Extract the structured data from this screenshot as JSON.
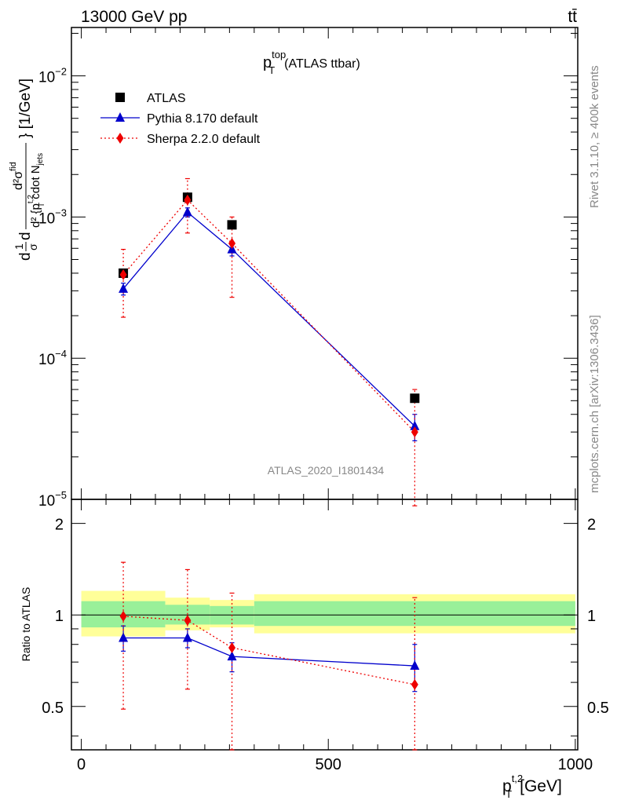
{
  "header": {
    "energy_label": "13000 GeV pp",
    "process_label": "tt̄"
  },
  "side_labels": {
    "rivet": "Rivet 3.1.10, ≥ 400k events",
    "mcplots": "mcplots.cern.ch [arXiv:1306.3436]"
  },
  "chart_data": {
    "type": "line",
    "title_main": "p",
    "title_sup": "top",
    "title_sub": "T",
    "title_suffix": "(ATLAS ttbar)",
    "analysis_id": "ATLAS_2020_I1801434",
    "xlabel": "p_T^{t,2} [GeV]",
    "xlabel_main": "p",
    "xlabel_sup": "t,2",
    "xlabel_sub": "T",
    "xlabel_unit": "[GeV]",
    "ylabel": "d1/σ d d²σ^fid / d²{p_T^{t,2} cdot N_jets} [1/GeV]",
    "ylabel_unit": "} [1/GeV]",
    "ylabel_part1": "d",
    "ylabel_frac1_num": "1",
    "ylabel_frac1_den": "σ",
    "ylabel_part2": "d",
    "ylabel_frac2_num": "d²σ",
    "ylabel_frac2_num_sup": "fid",
    "ylabel_frac2_den": "d² {p",
    "ylabel_frac2_den_sup": "t,2",
    "ylabel_frac2_den_sub": "T",
    "ylabel_frac2_den_tail": " cdot N",
    "ylabel_frac2_den_tail_sub": "jets",
    "ratio_ylabel": "Ratio to ATLAS",
    "xlim": [
      -20,
      1005
    ],
    "ylim": [
      1e-05,
      0.022
    ],
    "ratio_ylim": [
      0.36,
      2.4
    ],
    "x_ticks": [
      0,
      500,
      1000
    ],
    "x_tick_labels": [
      "0",
      "500",
      "1000"
    ],
    "y_ticks": [
      1e-05,
      0.0001,
      0.001,
      0.01
    ],
    "y_tick_labels": [
      {
        "base": "10",
        "exp": "−5"
      },
      {
        "base": "10",
        "exp": "−4"
      },
      {
        "base": "10",
        "exp": "−3"
      },
      {
        "base": "10",
        "exp": "−2"
      }
    ],
    "ratio_ticks": [
      0.5,
      1,
      2
    ],
    "ratio_tick_labels": [
      "0.5",
      "1",
      "2"
    ],
    "legend": [
      {
        "label": "ATLAS",
        "marker": "square",
        "color": "#000000"
      },
      {
        "label": "Pythia 8.170 default",
        "marker": "triangle",
        "color": "#0000cc"
      },
      {
        "label": "Sherpa 2.2.0 default",
        "marker": "diamond",
        "color": "#ee0000"
      }
    ],
    "data": {
      "name": "ATLAS",
      "x": [
        85,
        215,
        305,
        675
      ],
      "y": [
        0.0004,
        0.00138,
        0.00088,
        5.2e-05
      ],
      "err_up": [
        2e-05,
        6e-05,
        4e-05,
        3e-06
      ],
      "err_dn": [
        2e-05,
        6e-05,
        4e-05,
        3e-06
      ]
    },
    "bands": [
      {
        "x0": 0,
        "x1": 170,
        "inner": [
          0.91,
          1.11
        ],
        "outer": [
          0.85,
          1.2
        ]
      },
      {
        "x0": 170,
        "x1": 260,
        "inner": [
          0.93,
          1.08
        ],
        "outer": [
          0.89,
          1.14
        ]
      },
      {
        "x0": 260,
        "x1": 350,
        "inner": [
          0.93,
          1.07
        ],
        "outer": [
          0.91,
          1.12
        ]
      },
      {
        "x0": 350,
        "x1": 1000,
        "inner": [
          0.92,
          1.11
        ],
        "outer": [
          0.87,
          1.17
        ]
      }
    ],
    "series": [
      {
        "name": "Pythia 8.170 default",
        "color": "#0000cc",
        "dash": "none",
        "marker": "triangle",
        "x": [
          85,
          215,
          305,
          675
        ],
        "y": [
          0.00031,
          0.00108,
          0.00059,
          3.3e-05
        ],
        "err_up": [
          3e-05,
          8e-05,
          6e-05,
          7e-06
        ],
        "err_dn": [
          3e-05,
          8e-05,
          6e-05,
          7e-06
        ],
        "ratio": [
          0.84,
          0.84,
          0.73,
          0.68
        ],
        "ratio_err_up": [
          0.08,
          0.06,
          0.08,
          0.12
        ],
        "ratio_err_dn": [
          0.08,
          0.06,
          0.08,
          0.12
        ]
      },
      {
        "name": "Sherpa 2.2.0 default",
        "color": "#ee0000",
        "dash": "2,3",
        "marker": "diamond",
        "x": [
          85,
          215,
          305,
          675
        ],
        "y": [
          0.00039,
          0.00132,
          0.00065,
          3e-05
        ],
        "err_up": [
          0.0002,
          0.00055,
          0.00035,
          3e-05
        ],
        "err_dn": [
          0.000195,
          0.00055,
          0.00038,
          2.99e-05
        ],
        "ratio": [
          0.99,
          0.96,
          0.78,
          0.59
        ],
        "ratio_err_up": [
          0.5,
          0.45,
          0.4,
          0.55
        ],
        "ratio_err_dn": [
          0.5,
          0.39,
          0.42,
          0.23
        ]
      }
    ]
  }
}
